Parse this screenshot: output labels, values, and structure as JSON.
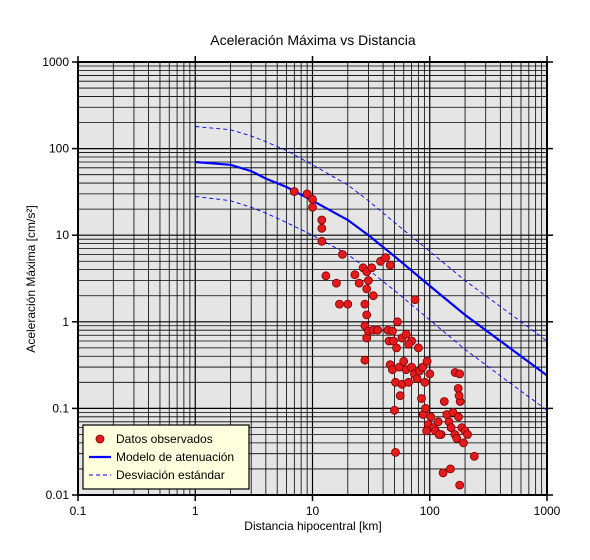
{
  "chart_data": {
    "type": "scatter",
    "title": "Aceleración Máxima vs Distancia",
    "xlabel": "Distancia hipocentral [km]",
    "ylabel": "Aceleración Máxima [cm/s²]",
    "x_scale": "log",
    "y_scale": "log",
    "xlim": [
      0.1,
      1000
    ],
    "ylim": [
      0.01,
      1000
    ],
    "x_ticks": [
      "0.1",
      "1",
      "10",
      "100",
      "1000"
    ],
    "y_ticks": [
      "0.01",
      "0.1",
      "1",
      "10",
      "100",
      "1000"
    ],
    "grid": true,
    "legend_position": "bottom-left",
    "colors": {
      "plot_background": "#e5e5e5",
      "grid": "#000000",
      "points_fill": "#e41a1c",
      "points_stroke": "#7a0000",
      "model_line": "#0000ff",
      "legend_background": "#ffffdd"
    },
    "series": [
      {
        "name": "Datos observados",
        "kind": "scatter",
        "points": [
          [
            7,
            32
          ],
          [
            9,
            30
          ],
          [
            10,
            26
          ],
          [
            10,
            21
          ],
          [
            12,
            15
          ],
          [
            12,
            12
          ],
          [
            12,
            8.5
          ],
          [
            18,
            6
          ],
          [
            13,
            3.4
          ],
          [
            16,
            2.8
          ],
          [
            17,
            1.6
          ],
          [
            20,
            1.6
          ],
          [
            23,
            3.5
          ],
          [
            25,
            2.8
          ],
          [
            27,
            4.2
          ],
          [
            29,
            3.8
          ],
          [
            32,
            4.2
          ],
          [
            30,
            3.0
          ],
          [
            33,
            2.0
          ],
          [
            29,
            2.4
          ],
          [
            28,
            1.6
          ],
          [
            29,
            1.2
          ],
          [
            38,
            5.0
          ],
          [
            42,
            5.5
          ],
          [
            46,
            4.5
          ],
          [
            28,
            0.9
          ],
          [
            29,
            0.65
          ],
          [
            30,
            0.78
          ],
          [
            33,
            0.8
          ],
          [
            36,
            0.8
          ],
          [
            44,
            0.8
          ],
          [
            48,
            0.78
          ],
          [
            53,
            1.0
          ],
          [
            45,
            0.6
          ],
          [
            49,
            0.6
          ],
          [
            52,
            0.5
          ],
          [
            58,
            0.65
          ],
          [
            63,
            0.72
          ],
          [
            70,
            0.6
          ],
          [
            75,
            1.8
          ],
          [
            66,
            0.55
          ],
          [
            80,
            0.5
          ],
          [
            28,
            0.36
          ],
          [
            46,
            0.32
          ],
          [
            48,
            0.28
          ],
          [
            51,
            0.2
          ],
          [
            55,
            0.3
          ],
          [
            60,
            0.35
          ],
          [
            63,
            0.28
          ],
          [
            70,
            0.3
          ],
          [
            74,
            0.25
          ],
          [
            78,
            0.22
          ],
          [
            82,
            0.27
          ],
          [
            87,
            0.3
          ],
          [
            91,
            0.2
          ],
          [
            95,
            0.35
          ],
          [
            100,
            0.25
          ],
          [
            56,
            0.14
          ],
          [
            58,
            0.19
          ],
          [
            66,
            0.2
          ],
          [
            50,
            0.095
          ],
          [
            85,
            0.13
          ],
          [
            88,
            0.085
          ],
          [
            92,
            0.1
          ],
          [
            97,
            0.065
          ],
          [
            102,
            0.08
          ],
          [
            108,
            0.06
          ],
          [
            112,
            0.055
          ],
          [
            118,
            0.07
          ],
          [
            125,
            0.05
          ],
          [
            133,
            0.12
          ],
          [
            140,
            0.085
          ],
          [
            146,
            0.07
          ],
          [
            152,
            0.06
          ],
          [
            158,
            0.09
          ],
          [
            164,
            0.05
          ],
          [
            170,
            0.045
          ],
          [
            176,
            0.08
          ],
          [
            182,
            0.12
          ],
          [
            188,
            0.06
          ],
          [
            194,
            0.04
          ],
          [
            200,
            0.055
          ],
          [
            210,
            0.05
          ],
          [
            165,
            0.26
          ],
          [
            180,
            0.25
          ],
          [
            175,
            0.17
          ],
          [
            178,
            0.14
          ],
          [
            240,
            0.028
          ],
          [
            120,
            0.05
          ],
          [
            94,
            0.055
          ],
          [
            130,
            0.018
          ],
          [
            150,
            0.02
          ],
          [
            51,
            0.031
          ],
          [
            180,
            0.013
          ]
        ]
      },
      {
        "name": "Modelo de atenuación",
        "kind": "line",
        "points": [
          [
            1,
            70
          ],
          [
            2,
            65
          ],
          [
            3,
            55
          ],
          [
            4,
            45
          ],
          [
            6,
            36
          ],
          [
            10,
            25
          ],
          [
            20,
            15
          ],
          [
            30,
            10
          ],
          [
            50,
            5.7
          ],
          [
            100,
            2.6
          ],
          [
            200,
            1.2
          ],
          [
            500,
            0.48
          ],
          [
            1000,
            0.24
          ]
        ]
      },
      {
        "name": "Desviación estándar",
        "kind": "dashed",
        "points": [
          [
            1,
            180
          ],
          [
            2,
            165
          ],
          [
            3,
            140
          ],
          [
            4,
            120
          ],
          [
            6,
            95
          ],
          [
            10,
            65
          ],
          [
            20,
            38
          ],
          [
            30,
            25
          ],
          [
            50,
            14
          ],
          [
            100,
            6.5
          ],
          [
            200,
            3.0
          ],
          [
            500,
            1.2
          ],
          [
            1000,
            0.6
          ]
        ]
      },
      {
        "name": "Desviación estándar",
        "kind": "dashed",
        "legend": false,
        "points": [
          [
            1,
            28
          ],
          [
            2,
            25
          ],
          [
            3,
            21
          ],
          [
            4,
            18
          ],
          [
            6,
            14
          ],
          [
            10,
            10
          ],
          [
            20,
            6
          ],
          [
            30,
            4
          ],
          [
            50,
            2.3
          ],
          [
            100,
            1.05
          ],
          [
            200,
            0.48
          ],
          [
            500,
            0.19
          ],
          [
            1000,
            0.095
          ]
        ]
      }
    ]
  }
}
